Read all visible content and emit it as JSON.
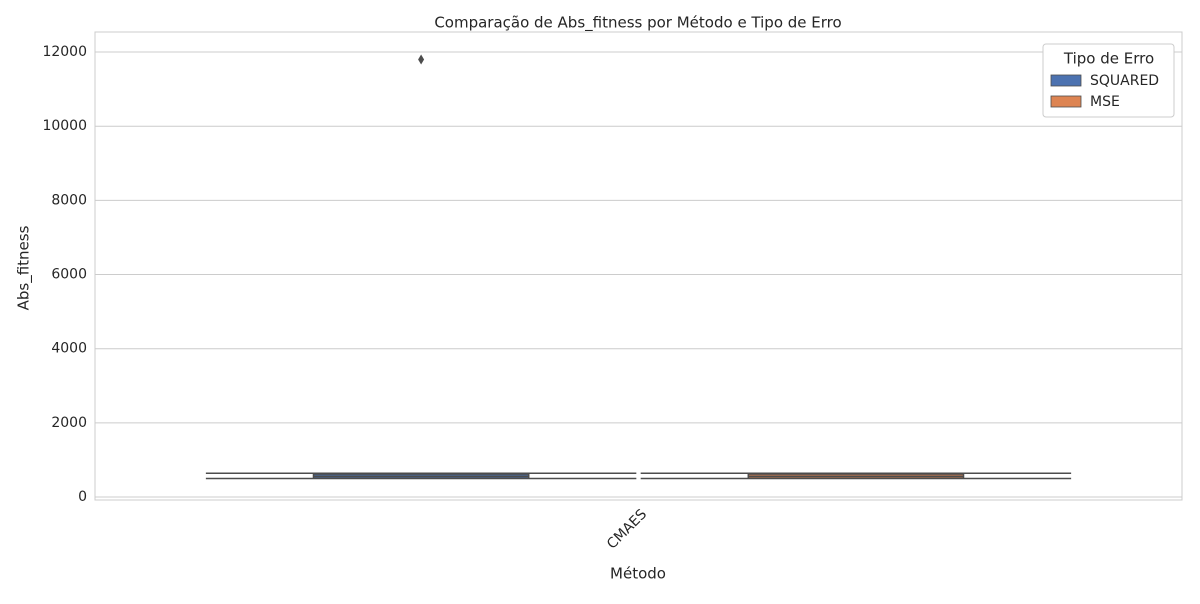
{
  "chart_data": {
    "type": "box",
    "title": "Comparação de Abs_fitness por Método e Tipo de Erro",
    "x_label": "Método",
    "y_label": "Abs_fitness",
    "categories": [
      "CMAES"
    ],
    "legend_title": "Tipo de Erro",
    "legend_position": "upper right",
    "series": [
      {
        "name": "SQUARED",
        "color": "#4c72b0",
        "whislo": [
          500
        ],
        "q1": [
          510
        ],
        "median": [
          560
        ],
        "q3": [
          620
        ],
        "whishi": [
          640
        ],
        "fliers": [
          [
            11800
          ]
        ]
      },
      {
        "name": "MSE",
        "color": "#dd8452",
        "whislo": [
          500
        ],
        "q1": [
          510
        ],
        "median": [
          560
        ],
        "q3": [
          620
        ],
        "whishi": [
          640
        ],
        "fliers": [
          []
        ]
      }
    ],
    "ylim": [
      -80,
      12540
    ],
    "yticks": [
      0,
      2000,
      4000,
      6000,
      8000,
      10000,
      12000
    ],
    "grid": true
  }
}
